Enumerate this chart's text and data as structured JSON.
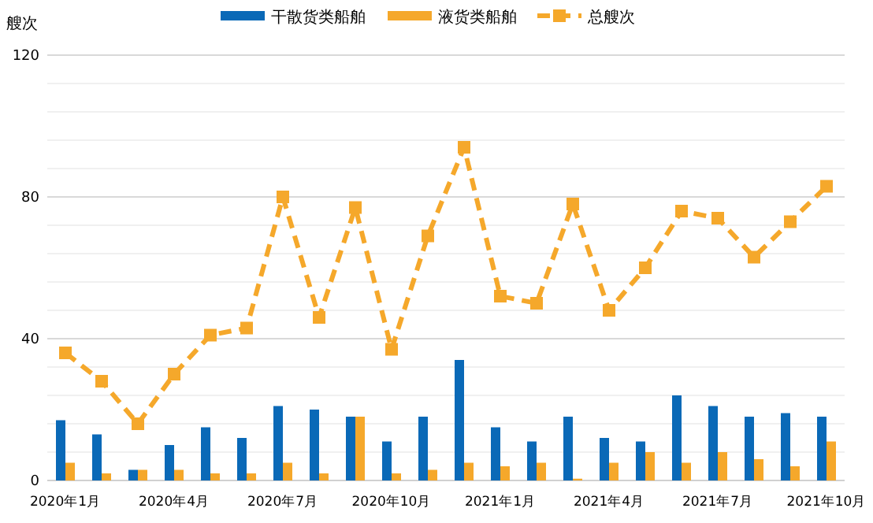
{
  "chart_data": {
    "type": "bar",
    "ylabel": "艘次",
    "categories": [
      "2020年1月",
      null,
      null,
      "2020年4月",
      null,
      null,
      "2020年7月",
      null,
      null,
      "2020年10月",
      null,
      null,
      "2021年1月",
      null,
      null,
      "2021年4月",
      null,
      null,
      "2021年7月",
      null,
      null,
      "2021年10月"
    ],
    "series": [
      {
        "name": "干散货类船舶",
        "color": "#0a69b7",
        "values": [
          17,
          13,
          3,
          10,
          15,
          12,
          21,
          20,
          18,
          11,
          18,
          34,
          15,
          11,
          18,
          12,
          11,
          24,
          21,
          18,
          19,
          18
        ]
      },
      {
        "name": "液货类船舶",
        "color": "#f5a82b",
        "values": [
          5,
          2,
          3,
          3,
          2,
          2,
          5,
          2,
          18,
          2,
          3,
          5,
          4,
          5,
          0.5,
          5,
          8,
          5,
          8,
          6,
          4,
          11
        ]
      },
      {
        "name": "总艘次",
        "type": "line",
        "color": "#f5a82b",
        "marker": "square",
        "line_style": "dashed",
        "values": [
          36,
          28,
          16,
          30,
          41,
          43,
          80,
          46,
          77,
          37,
          69,
          94,
          52,
          50,
          78,
          48,
          60,
          76,
          74,
          63,
          73,
          83
        ]
      }
    ],
    "ylim": [
      0,
      120
    ],
    "yticks": [
      0,
      {
        "value": 8,
        "label": null
      },
      {
        "value": 16,
        "label": null
      },
      {
        "value": 24,
        "label": null
      },
      {
        "value": 32,
        "label": null
      },
      40,
      {
        "value": 48,
        "label": null
      },
      {
        "value": 56,
        "label": null
      },
      {
        "value": 64,
        "label": null
      },
      {
        "value": 72,
        "label": null
      },
      80,
      {
        "value": 88,
        "label": null
      },
      {
        "value": 96,
        "label": null
      },
      {
        "value": 104,
        "label": null
      },
      {
        "value": 112,
        "label": null
      },
      120
    ],
    "grid": "y",
    "legend": "top"
  }
}
